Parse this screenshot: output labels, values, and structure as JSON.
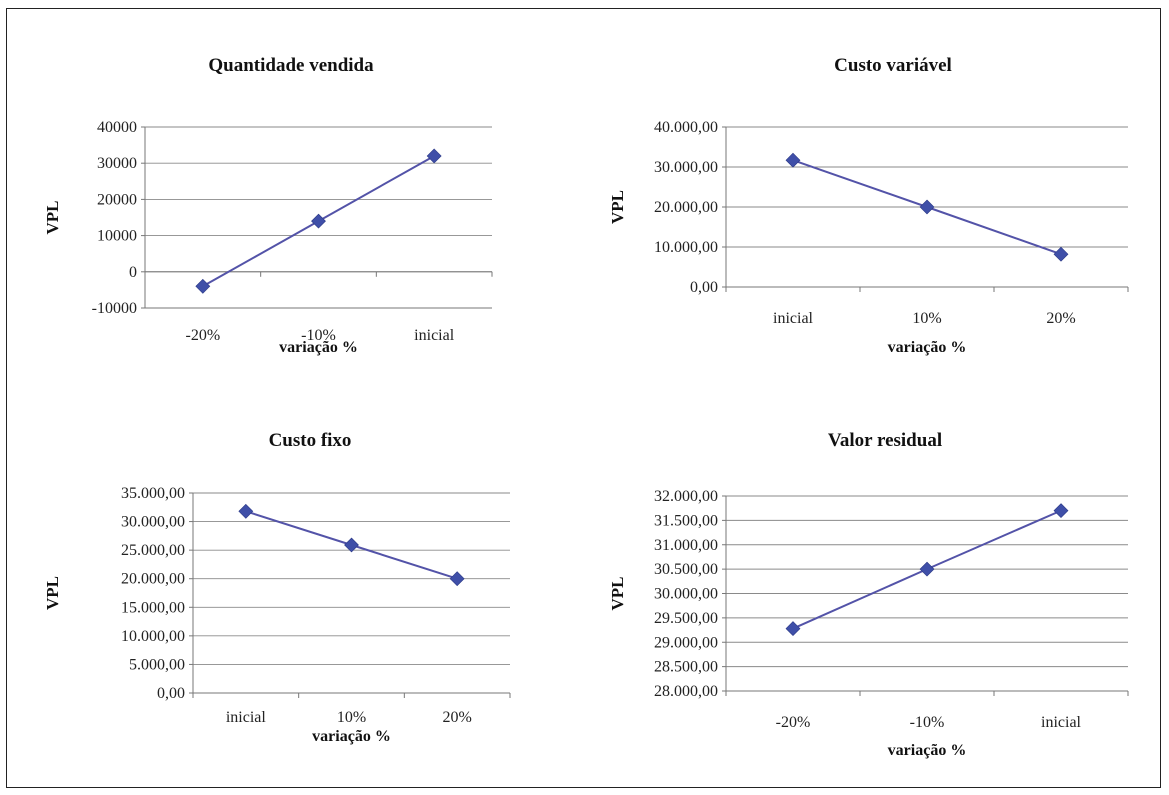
{
  "chart_data": [
    {
      "type": "line",
      "title": "Quantidade vendida",
      "xlabel": "variação %",
      "ylabel": "VPL",
      "categories": [
        "-20%",
        "-10%",
        "inicial"
      ],
      "values": [
        -4000,
        14000,
        32000
      ],
      "ylim": [
        -10000,
        40000
      ],
      "yticks": [
        -10000,
        0,
        10000,
        20000,
        30000,
        40000
      ],
      "ytick_labels": [
        "-10000",
        "0",
        "10000",
        "20000",
        "30000",
        "40000"
      ],
      "grid": true,
      "series_color": "#5353a8",
      "marker_color": "#3f4fa8"
    },
    {
      "type": "line",
      "title": "Custo variável",
      "xlabel": "variação %",
      "ylabel": "VPL",
      "categories": [
        "inicial",
        "10%",
        "20%"
      ],
      "values": [
        31700,
        20000,
        8200
      ],
      "ylim": [
        0,
        40000
      ],
      "yticks": [
        0,
        10000,
        20000,
        30000,
        40000
      ],
      "ytick_labels": [
        "0,00",
        "10.000,00",
        "20.000,00",
        "30.000,00",
        "40.000,00"
      ],
      "grid": true,
      "series_color": "#5353a8",
      "marker_color": "#3f4fa8"
    },
    {
      "type": "line",
      "title": "Custo fixo",
      "xlabel": "variação %",
      "ylabel": "VPL",
      "categories": [
        "inicial",
        "10%",
        "20%"
      ],
      "values": [
        31800,
        25900,
        20000
      ],
      "ylim": [
        0,
        35000
      ],
      "yticks": [
        0,
        5000,
        10000,
        15000,
        20000,
        25000,
        30000,
        35000
      ],
      "ytick_labels": [
        "0,00",
        "5.000,00",
        "10.000,00",
        "15.000,00",
        "20.000,00",
        "25.000,00",
        "30.000,00",
        "35.000,00"
      ],
      "grid": true,
      "series_color": "#5353a8",
      "marker_color": "#3f4fa8"
    },
    {
      "type": "line",
      "title": "Valor residual",
      "xlabel": "variação %",
      "ylabel": "VPL",
      "categories": [
        "-20%",
        "-10%",
        "inicial"
      ],
      "values": [
        29280,
        30500,
        31700
      ],
      "ylim": [
        28000,
        32000
      ],
      "yticks": [
        28000,
        28500,
        29000,
        29500,
        30000,
        30500,
        31000,
        31500,
        32000
      ],
      "ytick_labels": [
        "28.000,00",
        "28.500,00",
        "29.000,00",
        "29.500,00",
        "30.000,00",
        "30.500,00",
        "31.000,00",
        "31.500,00",
        "32.000,00"
      ],
      "grid": true,
      "series_color": "#5353a8",
      "marker_color": "#3f4fa8"
    }
  ]
}
